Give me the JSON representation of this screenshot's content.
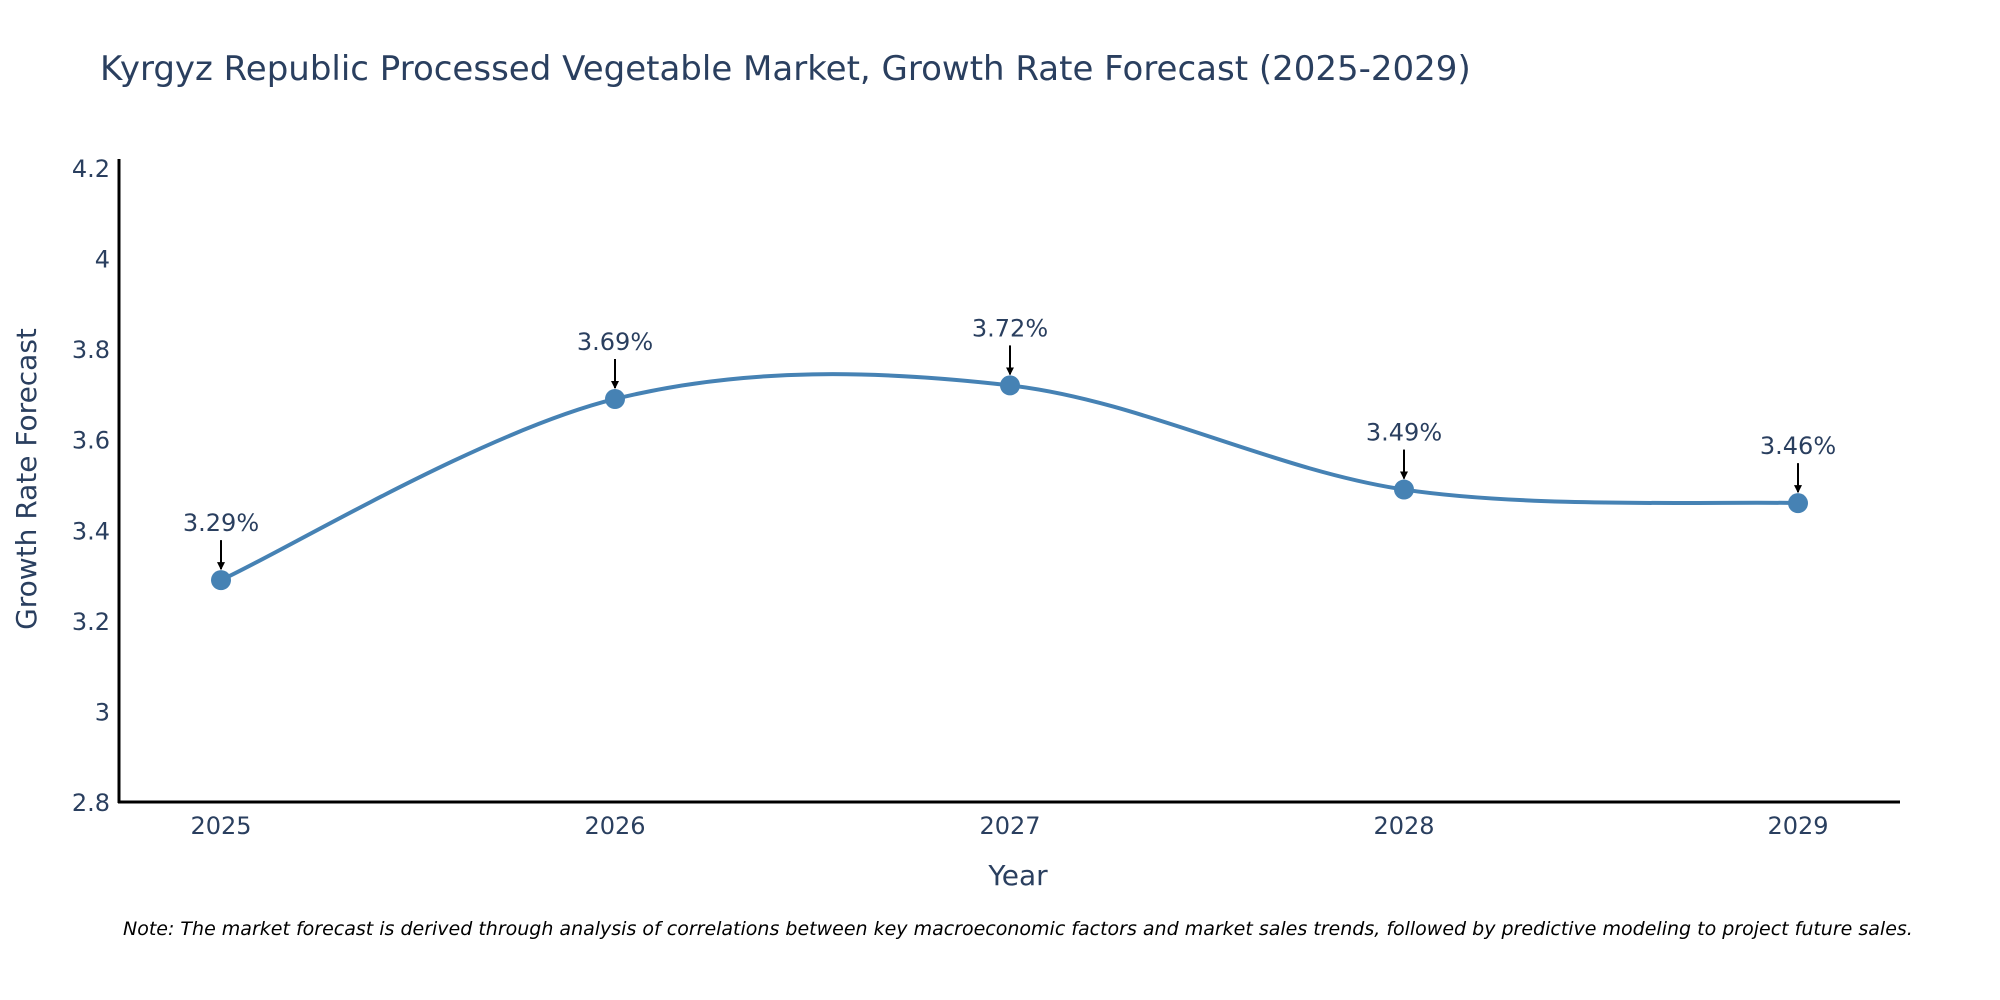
{
  "chart_data": {
    "type": "line",
    "title": "Kyrgyz Republic Processed Vegetable Market, Growth Rate Forecast (2025-2029)",
    "xlabel": "Year",
    "ylabel": "Growth Rate Forecast",
    "categories": [
      "2025",
      "2026",
      "2027",
      "2028",
      "2029"
    ],
    "values": [
      3.29,
      3.69,
      3.72,
      3.49,
      3.46
    ],
    "data_labels": [
      "3.29%",
      "3.69%",
      "3.72%",
      "3.49%",
      "3.46%"
    ],
    "ylim": [
      2.8,
      4.22
    ],
    "yticks": [
      2.8,
      3,
      3.2,
      3.4,
      3.6,
      3.8,
      4,
      4.2
    ],
    "ytick_labels": [
      "2.8",
      "3",
      "3.2",
      "3.4",
      "3.6",
      "3.8",
      "4",
      "4.2"
    ],
    "grid": false,
    "line_shape": "spline",
    "line_color": "#4682b4",
    "marker_color": "#4682b4",
    "arrow_color": "#000000",
    "axis_color": "#000000"
  },
  "note": "Note: The market forecast is derived through analysis of correlations between key macroeconomic factors and market sales trends, followed by predictive modeling to project future sales."
}
